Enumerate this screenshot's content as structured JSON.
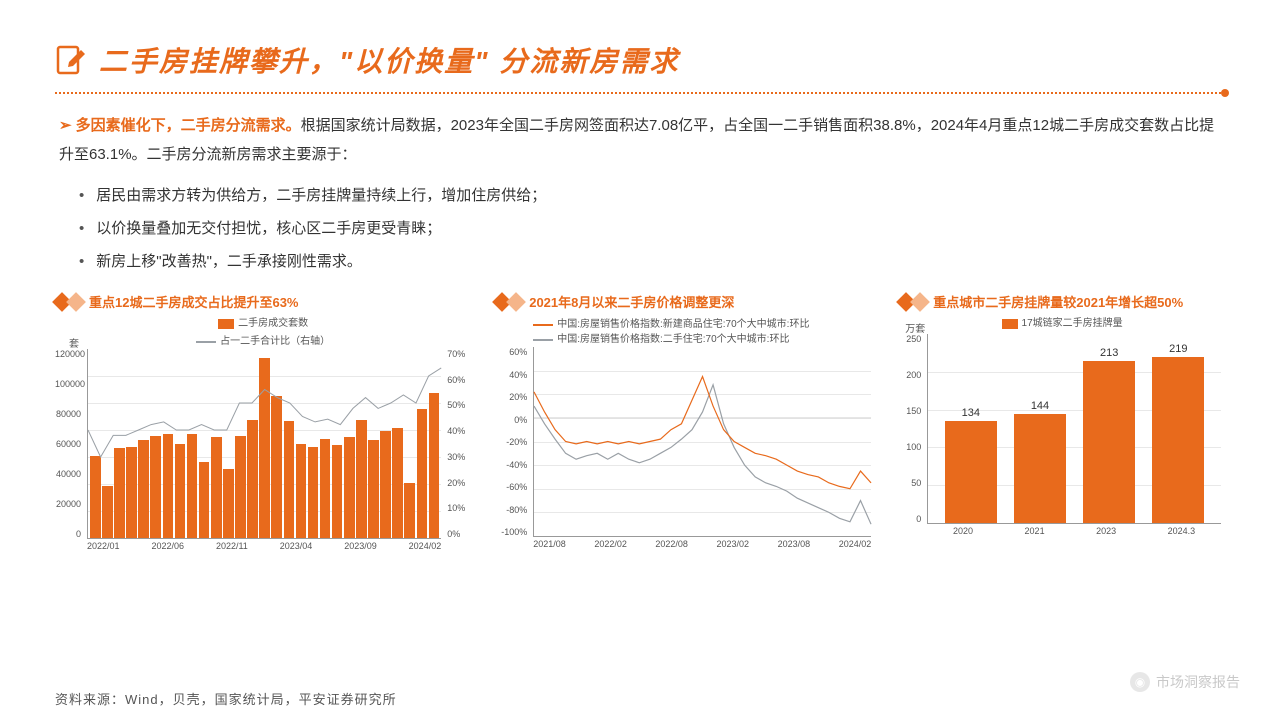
{
  "title": "二手房挂牌攀升，\"以价换量\" 分流新房需求",
  "lead_bold": "多因素催化下，二手房分流需求。",
  "lead_rest": "根据国家统计局数据，2023年全国二手房网签面积达7.08亿平，占全国一二手销售面积38.8%，2024年4月重点12城二手房成交套数占比提升至63.1%。二手房分流新房需求主要源于：",
  "bullets": [
    "居民由需求方转为供给方，二手房挂牌量持续上行，增加住房供给；",
    "以价换量叠加无交付担忧，核心区二手房更受青睐；",
    "新房上移\"改善热\"，二手承接刚性需求。"
  ],
  "chart1": {
    "title": "重点12城二手房成交占比提升至63%",
    "unit_left": "套",
    "legend_bar": "二手房成交套数",
    "legend_line": "占一二手合计比（右轴）",
    "y_left": [
      "120000",
      "100000",
      "80000",
      "60000",
      "40000",
      "20000",
      "0"
    ],
    "y_right": [
      "70%",
      "60%",
      "50%",
      "40%",
      "30%",
      "20%",
      "10%",
      "0%"
    ],
    "x": [
      "2022/01",
      "2022/06",
      "2022/11",
      "2023/04",
      "2023/09",
      "2024/02"
    ],
    "bars": [
      52,
      33,
      57,
      58,
      62,
      65,
      66,
      60,
      66,
      48,
      64,
      44,
      65,
      75,
      114,
      90,
      74,
      60,
      58,
      63,
      59,
      64,
      75,
      62,
      68,
      70,
      35,
      82,
      92
    ],
    "bar_max": 120,
    "line": [
      40,
      30,
      38,
      38,
      40,
      42,
      43,
      40,
      40,
      42,
      40,
      40,
      50,
      50,
      55,
      52,
      50,
      45,
      43,
      44,
      42,
      48,
      52,
      48,
      50,
      53,
      50,
      60,
      63
    ],
    "line_max": 70,
    "colors": {
      "bar": "#e86a1c",
      "line": "#9aa0a6"
    }
  },
  "chart2": {
    "title": "2021年8月以来二手房价格调整更深",
    "legend1": "中国:房屋销售价格指数:新建商品住宅:70个大中城市:环比",
    "legend2": "中国:房屋销售价格指数:二手住宅:70个大中城市:环比",
    "y": [
      "60%",
      "40%",
      "20%",
      "0%",
      "-20%",
      "-40%",
      "-60%",
      "-80%",
      "-100%"
    ],
    "x": [
      "2021/08",
      "2022/02",
      "2022/08",
      "2023/02",
      "2023/08",
      "2024/02"
    ],
    "series1": [
      22,
      5,
      -10,
      -20,
      -22,
      -20,
      -22,
      -20,
      -22,
      -20,
      -22,
      -20,
      -18,
      -10,
      -5,
      15,
      35,
      10,
      -10,
      -20,
      -25,
      -30,
      -32,
      -35,
      -40,
      -45,
      -48,
      -50,
      -55,
      -58,
      -60,
      -45,
      -55
    ],
    "series2": [
      10,
      -5,
      -18,
      -30,
      -35,
      -32,
      -30,
      -35,
      -30,
      -35,
      -38,
      -35,
      -30,
      -25,
      -18,
      -10,
      5,
      28,
      -5,
      -25,
      -40,
      -50,
      -55,
      -58,
      -62,
      -68,
      -72,
      -76,
      -80,
      -85,
      -88,
      -70,
      -90
    ],
    "y_min": -100,
    "y_max": 60,
    "colors": {
      "s1": "#e86a1c",
      "s2": "#9aa0a6"
    }
  },
  "chart3": {
    "title": "重点城市二手房挂牌量较2021年增长超50%",
    "unit": "万套",
    "legend": "17城链家二手房挂牌量",
    "y": [
      "250",
      "200",
      "150",
      "100",
      "50",
      "0"
    ],
    "categories": [
      "2020",
      "2021",
      "2023",
      "2024.3"
    ],
    "values": [
      134,
      144,
      213,
      219
    ],
    "y_max": 250,
    "color": "#e86a1c"
  },
  "source": "资料来源：Wind，贝壳，国家统计局，平安证券研究所",
  "watermark": "市场洞察报告"
}
